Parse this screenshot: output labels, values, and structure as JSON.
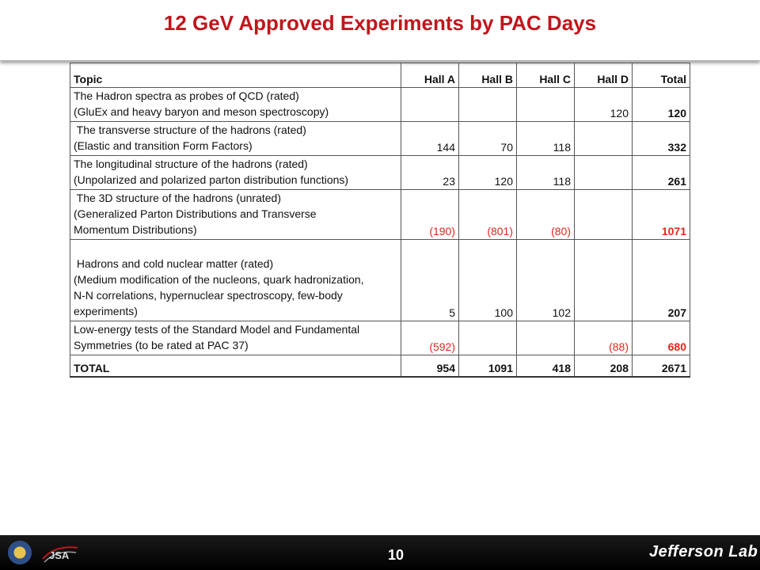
{
  "title": "12 GeV Approved Experiments by PAC Days",
  "table": {
    "headers": [
      "Topic",
      "Hall A",
      "Hall B",
      "Hall C",
      "Hall D",
      "Total"
    ],
    "rows": [
      {
        "topic": [
          "The Hadron spectra as probes of QCD (rated)",
          "(GluEx and heavy baryon and meson spectroscopy)"
        ],
        "a": "",
        "b": "",
        "c": "",
        "d": "120",
        "total": "120",
        "red": false
      },
      {
        "topic": [
          " The transverse structure of the hadrons (rated)",
          "(Elastic and transition Form Factors)"
        ],
        "a": "144",
        "b": "70",
        "c": "118",
        "d": "",
        "total": "332",
        "red": false
      },
      {
        "topic": [
          "The longitudinal structure of the hadrons (rated)",
          "(Unpolarized and polarized parton distribution functions)"
        ],
        "a": "23",
        "b": "120",
        "c": "118",
        "d": "",
        "total": "261",
        "red": false
      },
      {
        "topic": [
          " The 3D structure of the hadrons (unrated)",
          "(Generalized Parton Distributions and Transverse",
          "Momentum Distributions)"
        ],
        "a": "(190)",
        "b": "(801)",
        "c": "(80)",
        "d": "",
        "total": "1071",
        "red": true
      },
      {
        "topic": [
          "",
          " Hadrons and cold nuclear matter (rated)",
          "(Medium modification of the nucleons, quark hadronization,",
          "N-N correlations, hypernuclear spectroscopy, few-body",
          "experiments)"
        ],
        "a": "5",
        "b": "100",
        "c": "102",
        "d": "",
        "total": "207",
        "red": false
      },
      {
        "topic": [
          "Low-energy tests of the Standard Model and Fundamental",
          "Symmetries (to be rated at PAC 37)"
        ],
        "a": "(592)",
        "b": "",
        "c": "",
        "d": "(88)",
        "total": "680",
        "red": true
      }
    ],
    "total_row": {
      "label": "TOTAL",
      "a": "954",
      "b": "1091",
      "c": "418",
      "d": "208",
      "total": "2671"
    }
  },
  "footer": {
    "page_number": "10",
    "jsa_logo_text": "JSA",
    "brand": "Jefferson Lab"
  },
  "colors": {
    "title": "#c0161c",
    "highlight": "#e0261b",
    "footer": "#000000"
  }
}
